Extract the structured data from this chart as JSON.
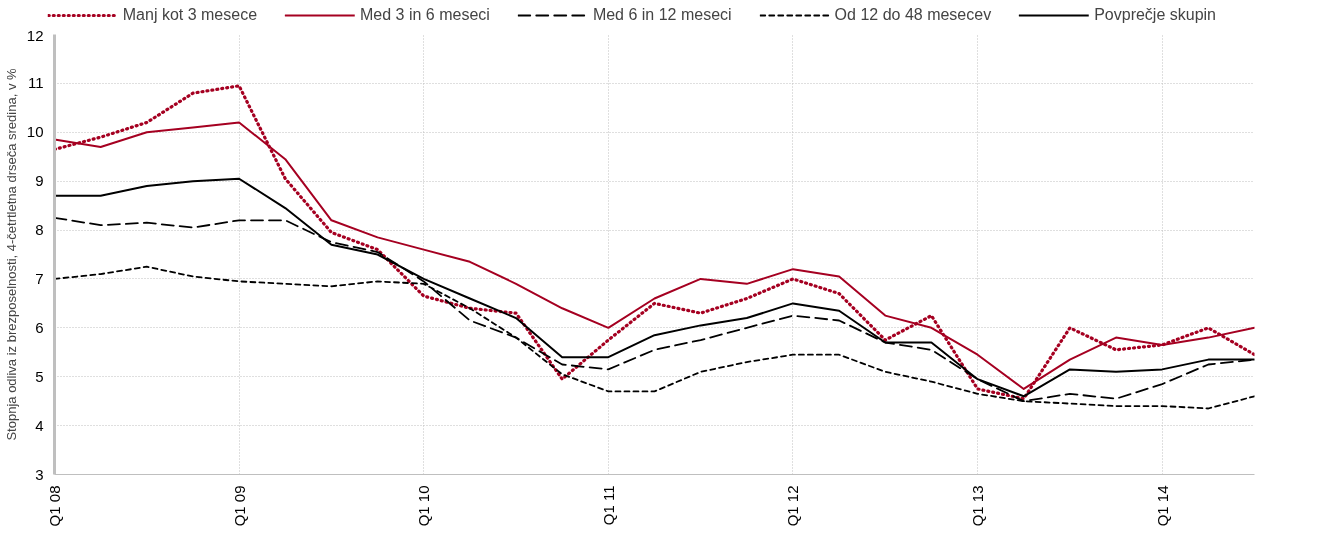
{
  "chart_data": {
    "type": "line",
    "ylabel": "Stopnja odliva iz brezposelnosti, 4-četrtletna drseča sredina, v %",
    "categories": [
      "Q1 08",
      null,
      null,
      null,
      "Q1 09",
      null,
      null,
      null,
      "Q1 10",
      null,
      null,
      null,
      "Q1 11",
      null,
      null,
      null,
      "Q1 12",
      null,
      null,
      null,
      "Q1 13",
      null,
      null,
      null,
      "Q1 14",
      null,
      null
    ],
    "ylim": [
      3,
      12
    ],
    "yticks": [
      3,
      4,
      5,
      6,
      7,
      8,
      9,
      10,
      11,
      12
    ],
    "grid": true,
    "legend": "top",
    "series": [
      {
        "name": "Manj kot 3 mesece",
        "color": "#a50021",
        "line_style": "dotted",
        "values": [
          9.65,
          9.9,
          10.2,
          10.8,
          10.95,
          9.05,
          7.95,
          7.6,
          6.65,
          6.4,
          6.3,
          4.95,
          5.75,
          6.5,
          6.3,
          6.6,
          7.0,
          6.7,
          5.75,
          6.25,
          4.75,
          4.55,
          6.0,
          5.55,
          5.65,
          6.0,
          5.45
        ]
      },
      {
        "name": "Med 3 in 6 meseci",
        "color": "#a50021",
        "line_style": "solid",
        "values": [
          9.85,
          9.7,
          10.0,
          10.1,
          10.2,
          9.45,
          8.2,
          7.85,
          7.6,
          7.35,
          6.9,
          6.4,
          6.0,
          6.6,
          7.0,
          6.9,
          7.2,
          7.05,
          6.25,
          6.0,
          5.45,
          4.75,
          5.35,
          5.8,
          5.65,
          5.8,
          6.0
        ]
      },
      {
        "name": "Med 6 in 12 meseci",
        "color": "#000000",
        "line_style": "longdash",
        "values": [
          8.25,
          8.1,
          8.15,
          8.05,
          8.2,
          8.2,
          7.75,
          7.55,
          6.95,
          6.15,
          5.8,
          5.25,
          5.15,
          5.55,
          5.75,
          6.0,
          6.25,
          6.15,
          5.7,
          5.55,
          4.95,
          4.5,
          4.65,
          4.55,
          4.85,
          5.25,
          5.35
        ]
      },
      {
        "name": "Od 12 do 48 mesecev",
        "color": "#000000",
        "line_style": "dashed",
        "values": [
          7.0,
          7.1,
          7.25,
          7.05,
          6.95,
          6.9,
          6.85,
          6.95,
          6.9,
          6.4,
          5.8,
          5.05,
          4.7,
          4.7,
          5.1,
          5.3,
          5.45,
          5.45,
          5.1,
          4.9,
          4.65,
          4.5,
          4.45,
          4.4,
          4.4,
          4.35,
          4.6
        ]
      },
      {
        "name": "Povprečje skupin",
        "color": "#000000",
        "line_style": "solid",
        "values": [
          8.7,
          8.7,
          8.9,
          9.0,
          9.05,
          8.45,
          7.7,
          7.5,
          7.0,
          6.6,
          6.2,
          5.4,
          5.4,
          5.85,
          6.05,
          6.2,
          6.5,
          6.35,
          5.7,
          5.7,
          4.95,
          4.6,
          5.15,
          5.1,
          5.15,
          5.35,
          5.35
        ]
      }
    ]
  }
}
